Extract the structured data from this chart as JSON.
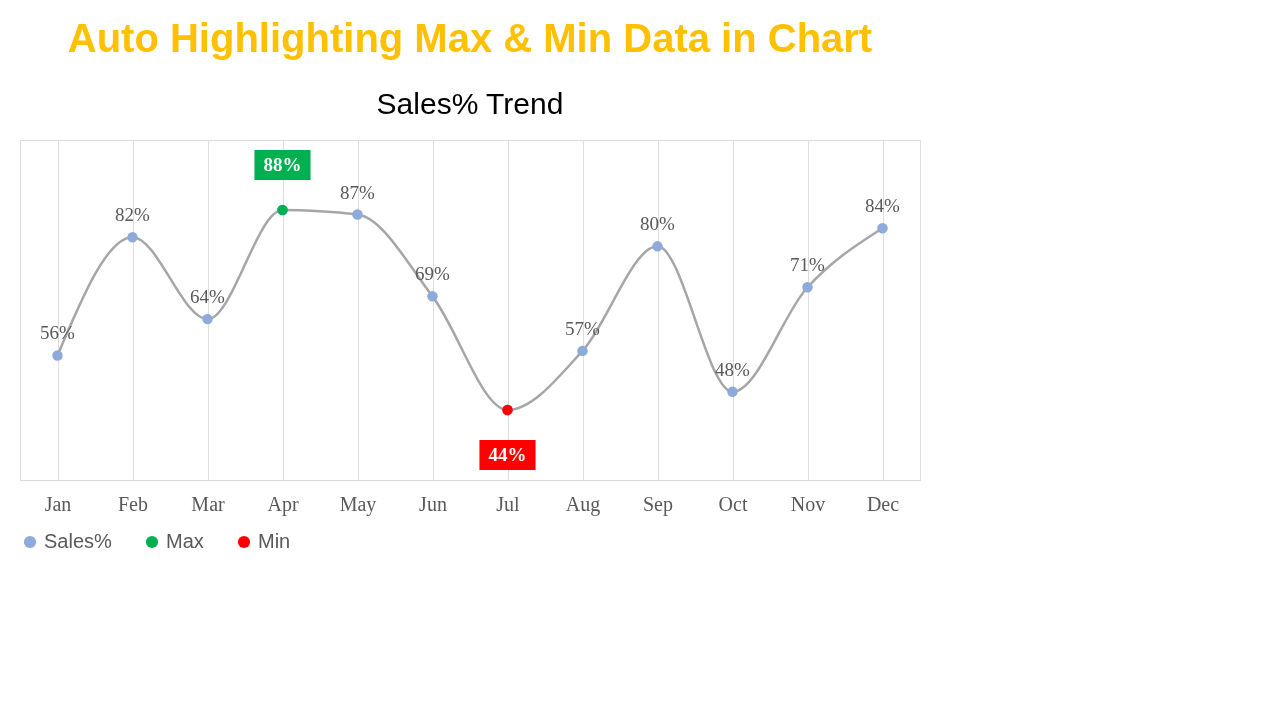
{
  "chart_data": {
    "type": "line",
    "title": "Auto Highlighting Max & Min Data in Chart",
    "subtitle": "Sales% Trend",
    "categories": [
      "Jan",
      "Feb",
      "Mar",
      "Apr",
      "May",
      "Jun",
      "Jul",
      "Aug",
      "Sep",
      "Oct",
      "Nov",
      "Dec"
    ],
    "series": [
      {
        "name": "Sales%",
        "color": "#8eaadb",
        "values": [
          56,
          82,
          64,
          88,
          87,
          69,
          44,
          57,
          80,
          48,
          71,
          84
        ],
        "value_labels": [
          "56%",
          "82%",
          "64%",
          null,
          "87%",
          "69%",
          null,
          "57%",
          "80%",
          "48%",
          "71%",
          "84%"
        ]
      },
      {
        "name": "Max",
        "type": "scatter",
        "color": "#00b050",
        "values": [
          null,
          null,
          null,
          88,
          null,
          null,
          null,
          null,
          null,
          null,
          null,
          null
        ],
        "value_labels": [
          null,
          null,
          null,
          "88%",
          null,
          null,
          null,
          null,
          null,
          null,
          null,
          null
        ]
      },
      {
        "name": "Min",
        "type": "scatter",
        "color": "#ff0000",
        "values": [
          null,
          null,
          null,
          null,
          null,
          null,
          44,
          null,
          null,
          null,
          null,
          null
        ],
        "value_labels": [
          null,
          null,
          null,
          null,
          null,
          null,
          "44%",
          null,
          null,
          null,
          null,
          null
        ]
      }
    ],
    "marker": "circle",
    "line_style": "solid",
    "grid": true,
    "legend": "bottom",
    "tick_labels": "x"
  }
}
